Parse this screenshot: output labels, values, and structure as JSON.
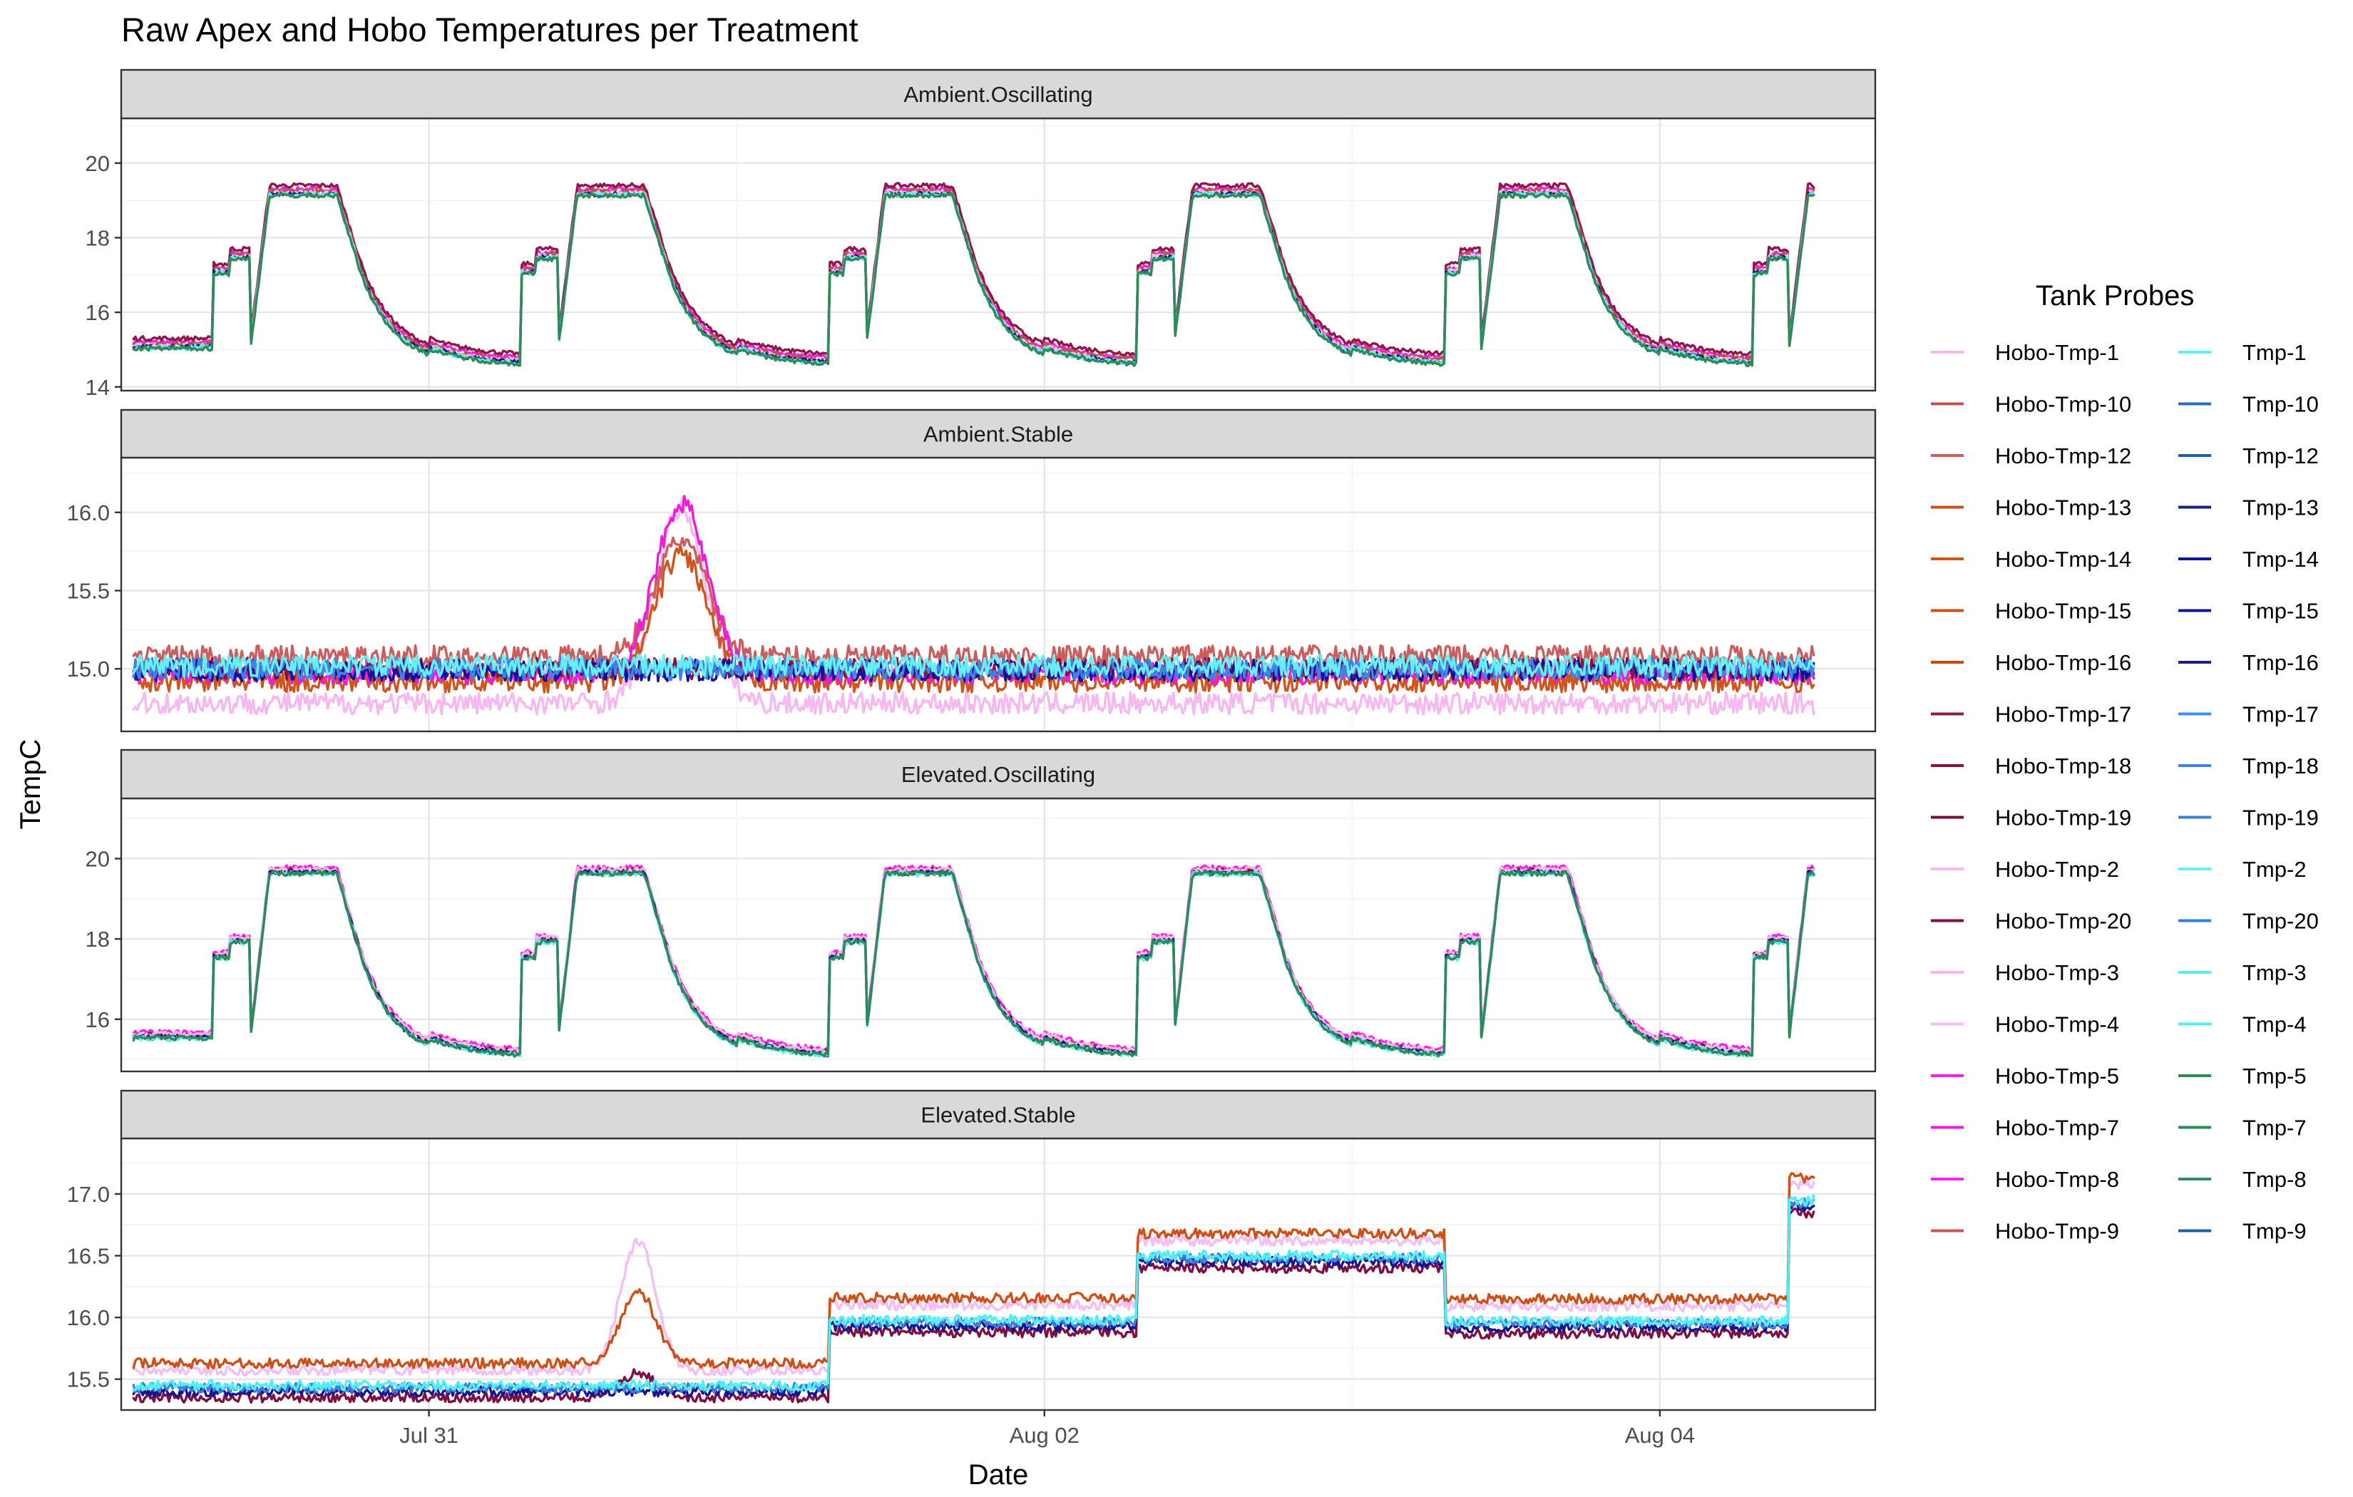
{
  "chart_data": {
    "type": "line",
    "title": "Raw Apex and Hobo Temperatures per Treatment",
    "xlabel": "Date",
    "ylabel": "TempC",
    "x_domain_days": [
      0,
      5.7
    ],
    "x_ticks": [
      {
        "label": "Jul 31",
        "value": 1
      },
      {
        "label": "Aug 02",
        "value": 3
      },
      {
        "label": "Aug 04",
        "value": 5
      }
    ],
    "x_range_shown": [
      "2020-07-30T00:00",
      "2020-08-04T11:00"
    ],
    "legend": {
      "title": "Tank Probes",
      "position": "right",
      "entries": [
        {
          "name": "Hobo-Tmp-1",
          "color": "#f9b6e9"
        },
        {
          "name": "Hobo-Tmp-10",
          "color": "#c0504d"
        },
        {
          "name": "Hobo-Tmp-12",
          "color": "#cd5c5c"
        },
        {
          "name": "Hobo-Tmp-13",
          "color": "#c9521a"
        },
        {
          "name": "Hobo-Tmp-14",
          "color": "#d2541b"
        },
        {
          "name": "Hobo-Tmp-15",
          "color": "#cf4f15"
        },
        {
          "name": "Hobo-Tmp-16",
          "color": "#c44c10"
        },
        {
          "name": "Hobo-Tmp-17",
          "color": "#8b1a4a"
        },
        {
          "name": "Hobo-Tmp-18",
          "color": "#8a1240"
        },
        {
          "name": "Hobo-Tmp-19",
          "color": "#7a0c3e"
        },
        {
          "name": "Hobo-Tmp-2",
          "color": "#f7b8ef"
        },
        {
          "name": "Hobo-Tmp-20",
          "color": "#7f0e44"
        },
        {
          "name": "Hobo-Tmp-3",
          "color": "#fbb3e6"
        },
        {
          "name": "Hobo-Tmp-4",
          "color": "#f4bdf4"
        },
        {
          "name": "Hobo-Tmp-5",
          "color": "#ff1ee6"
        },
        {
          "name": "Hobo-Tmp-7",
          "color": "#f019e0"
        },
        {
          "name": "Hobo-Tmp-8",
          "color": "#ff22ee"
        },
        {
          "name": "Hobo-Tmp-9",
          "color": "#cd5555"
        },
        {
          "name": "Tmp-1",
          "color": "#5cf2f5"
        },
        {
          "name": "Tmp-10",
          "color": "#2b6cb5"
        },
        {
          "name": "Tmp-12",
          "color": "#1f5fa8"
        },
        {
          "name": "Tmp-13",
          "color": "#1a237e"
        },
        {
          "name": "Tmp-14",
          "color": "#1010a0"
        },
        {
          "name": "Tmp-15",
          "color": "#151594"
        },
        {
          "name": "Tmp-16",
          "color": "#1c1c8a"
        },
        {
          "name": "Tmp-17",
          "color": "#3b8ef0"
        },
        {
          "name": "Tmp-18",
          "color": "#3d86e6"
        },
        {
          "name": "Tmp-19",
          "color": "#3a7fde"
        },
        {
          "name": "Tmp-2",
          "color": "#66f0f5"
        },
        {
          "name": "Tmp-20",
          "color": "#2f7fe8"
        },
        {
          "name": "Tmp-3",
          "color": "#55eef2"
        },
        {
          "name": "Tmp-4",
          "color": "#4ff0f5"
        },
        {
          "name": "Tmp-5",
          "color": "#2e8b57"
        },
        {
          "name": "Tmp-7",
          "color": "#2a8a5a"
        },
        {
          "name": "Tmp-8",
          "color": "#2f8f63"
        },
        {
          "name": "Tmp-9",
          "color": "#1d5fa0"
        }
      ]
    },
    "facets": [
      {
        "name": "Ambient.Oscillating",
        "ylim": [
          13.9,
          21.2
        ],
        "yticks": [
          14,
          16,
          18,
          20
        ],
        "profile": "oscillating",
        "base": 15.05,
        "series": [
          {
            "name": "Hobo-Tmp-5",
            "color": "#ff1ee6",
            "offset": 0.15
          },
          {
            "name": "Hobo-Tmp-17",
            "color": "#8b1a4a",
            "offset": 0.25
          },
          {
            "name": "Hobo-Tmp-10",
            "color": "#c0504d",
            "offset": 0.1
          },
          {
            "name": "Hobo-Tmp-1",
            "color": "#f9b6e9",
            "offset": 0.05
          },
          {
            "name": "Tmp-13",
            "color": "#1a237e",
            "offset": 0.02
          },
          {
            "name": "Tmp-1",
            "color": "#5cf2f5",
            "offset": 0.0
          },
          {
            "name": "Tmp-5",
            "color": "#2e8b57",
            "offset": -0.02
          }
        ]
      },
      {
        "name": "Ambient.Stable",
        "ylim": [
          14.6,
          16.35
        ],
        "yticks": [
          15.0,
          15.5,
          16.0
        ],
        "profile": "stable",
        "series": [
          {
            "name": "Hobo-Tmp-2",
            "color": "#f7b8ef",
            "level": 14.78
          },
          {
            "name": "Hobo-Tmp-14",
            "color": "#d2541b",
            "level": 14.92
          },
          {
            "name": "Hobo-Tmp-12",
            "color": "#cd5c5c",
            "level": 15.08
          },
          {
            "name": "Hobo-Tmp-7",
            "color": "#f019e0",
            "level": 14.97
          },
          {
            "name": "Hobo-Tmp-18",
            "color": "#8a1240",
            "level": 15.0
          },
          {
            "name": "Tmp-14",
            "color": "#1010a0",
            "level": 14.99
          },
          {
            "name": "Tmp-18",
            "color": "#3d86e6",
            "level": 15.0
          },
          {
            "name": "Tmp-2",
            "color": "#66f0f5",
            "level": 15.02
          }
        ],
        "spike": {
          "center_day": 1.82,
          "width_day": 0.2,
          "heights": [
            1.25,
            0.82,
            0.75,
            1.1
          ]
        }
      },
      {
        "name": "Elevated.Oscillating",
        "ylim": [
          14.7,
          21.5
        ],
        "yticks": [
          16,
          18,
          20
        ],
        "profile": "oscillating",
        "base": 15.55,
        "series": [
          {
            "name": "Hobo-Tmp-8",
            "color": "#ff22ee",
            "offset": 0.12
          },
          {
            "name": "Hobo-Tmp-19",
            "color": "#7a0c3e",
            "offset": 0.05
          },
          {
            "name": "Hobo-Tmp-3",
            "color": "#fbb3e6",
            "offset": 0.08
          },
          {
            "name": "Tmp-16",
            "color": "#1c1c8a",
            "offset": 0.0
          },
          {
            "name": "Tmp-3",
            "color": "#55eef2",
            "offset": -0.03
          },
          {
            "name": "Tmp-7",
            "color": "#2a8a5a",
            "offset": -0.02
          }
        ]
      },
      {
        "name": "Elevated.Stable",
        "ylim": [
          15.25,
          17.45
        ],
        "yticks": [
          15.5,
          16.0,
          16.5,
          17.0
        ],
        "profile": "steps",
        "series": [
          {
            "name": "Hobo-Tmp-4",
            "color": "#f4bdf4",
            "offset": 0.12
          },
          {
            "name": "Hobo-Tmp-15",
            "color": "#cf4f15",
            "offset": 0.18
          },
          {
            "name": "Hobo-Tmp-20",
            "color": "#7f0e44",
            "offset": -0.1
          },
          {
            "name": "Tmp-15",
            "color": "#151594",
            "offset": -0.05
          },
          {
            "name": "Tmp-19",
            "color": "#3a7fde",
            "offset": -0.02
          },
          {
            "name": "Tmp-4",
            "color": "#4ff0f5",
            "offset": 0.0
          }
        ],
        "steps": [
          {
            "from": 0,
            "to": 2.3,
            "level": 15.45
          },
          {
            "from": 2.3,
            "to": 3.3,
            "level": 15.98
          },
          {
            "from": 3.3,
            "to": 4.3,
            "level": 16.5
          },
          {
            "from": 4.3,
            "to": 5.42,
            "level": 15.97
          },
          {
            "from": 5.42,
            "to": 5.5,
            "level": 16.95
          }
        ],
        "spike": {
          "center_day": 1.68,
          "width_day": 0.14,
          "heights": [
            1.05,
            0.58,
            0.2
          ]
        }
      }
    ]
  }
}
